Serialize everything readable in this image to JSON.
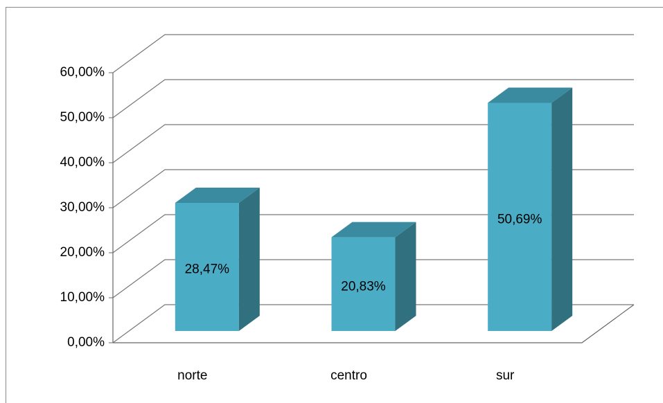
{
  "chart_data": {
    "type": "bar3d",
    "categories": [
      "norte",
      "centro",
      "sur"
    ],
    "values": [
      28.47,
      20.83,
      50.69
    ],
    "value_labels": [
      "28,47%",
      "20,83%",
      "50,69%"
    ],
    "color": "#4bacc6",
    "ylim": [
      0,
      60
    ],
    "yticks": [
      {
        "value": 0,
        "label": "0,00%"
      },
      {
        "value": 10,
        "label": "10,00%"
      },
      {
        "value": 20,
        "label": "20,00%"
      },
      {
        "value": 30,
        "label": "30,00%"
      },
      {
        "value": 40,
        "label": "40,00%"
      },
      {
        "value": 50,
        "label": "50,00%"
      },
      {
        "value": 60,
        "label": "60,00%"
      }
    ],
    "grid": true
  }
}
